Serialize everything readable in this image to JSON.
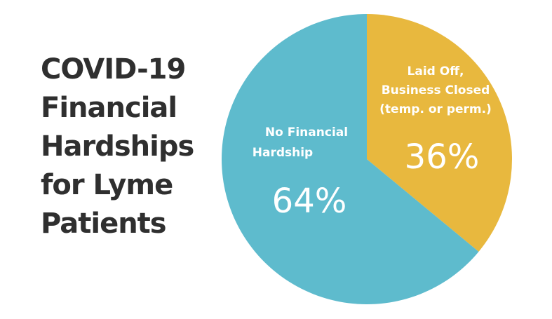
{
  "title_lines": [
    "COVID-19",
    "Financial",
    "Hardships",
    "for Lyme",
    "Patients"
  ],
  "chart_data": {
    "type": "pie",
    "title": "COVID-19 Financial Hardships for Lyme Patients",
    "start_angle_deg": 0,
    "direction": "clockwise",
    "slices": [
      {
        "label_lines": [
          "Laid Off,",
          "Business Closed",
          "(temp. or perm.)"
        ],
        "value": 36,
        "percent_label": "36%",
        "color": "#e8b83e"
      },
      {
        "label_lines": [
          "No Financial",
          "Hardship"
        ],
        "value": 64,
        "percent_label": "64%",
        "color": "#5ebbcd"
      }
    ]
  }
}
